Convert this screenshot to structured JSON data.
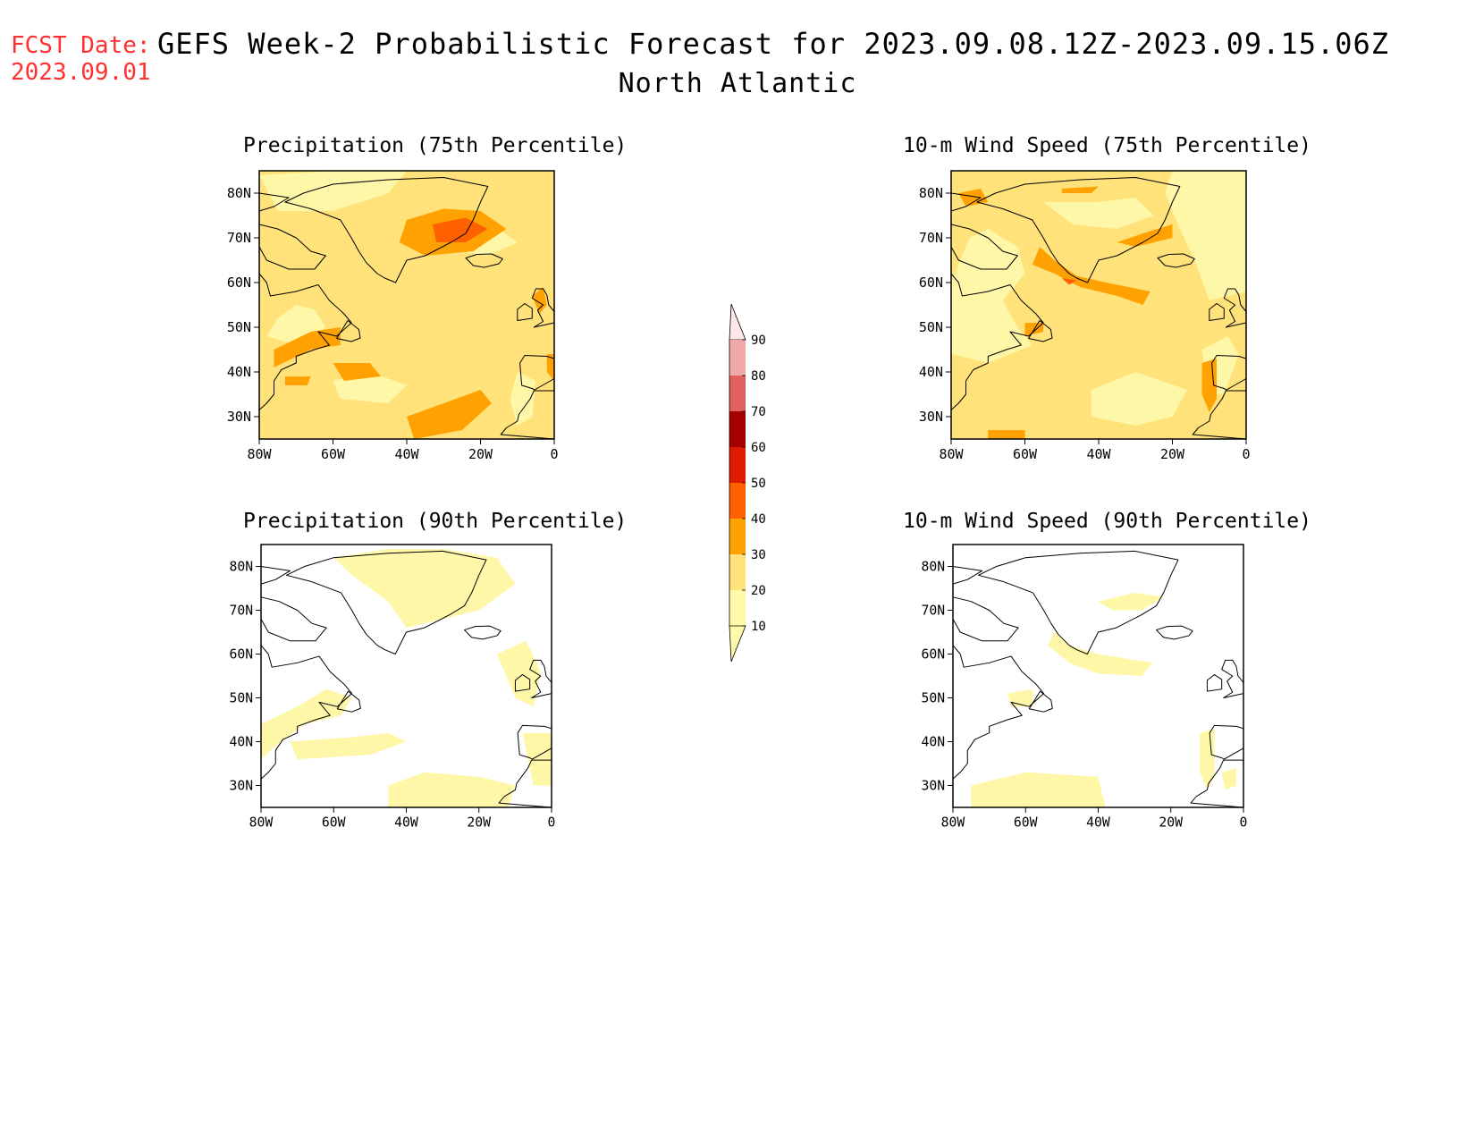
{
  "fcst_date": {
    "label": "FCST Date:",
    "value": "2023.09.01"
  },
  "title": "GEFS Week-2 Probabilistic Forecast for 2023.09.08.12Z-2023.09.15.06Z",
  "region": "North Atlantic",
  "panels": [
    {
      "id": "precip75",
      "title": "Precipitation (75th Percentile)"
    },
    {
      "id": "wind75",
      "title": "10-m Wind Speed (75th Percentile)"
    },
    {
      "id": "precip90",
      "title": "Precipitation (90th Percentile)"
    },
    {
      "id": "wind90",
      "title": "10-m Wind Speed (90th Percentile)"
    }
  ],
  "lat_ticks": [
    "80N",
    "70N",
    "60N",
    "50N",
    "40N",
    "30N"
  ],
  "lon_ticks": [
    "80W",
    "60W",
    "40W",
    "20W",
    "0"
  ],
  "colorbar": {
    "levels": [
      "10",
      "20",
      "30",
      "40",
      "50",
      "60",
      "70",
      "80",
      "90"
    ],
    "colors": [
      "#fffaa8",
      "#ffe27a",
      "#ffa100",
      "#ff6100",
      "#e01c00",
      "#a50000",
      "#e06060",
      "#f2a8a8",
      "#ffe8e8"
    ]
  },
  "colors": {
    "light_yellow": "#fff7a8",
    "yellow": "#ffe27a",
    "orange": "#ffa100",
    "dark_orange": "#ff6100",
    "coast": "#000000",
    "fcst_red": "#ff3030"
  }
}
